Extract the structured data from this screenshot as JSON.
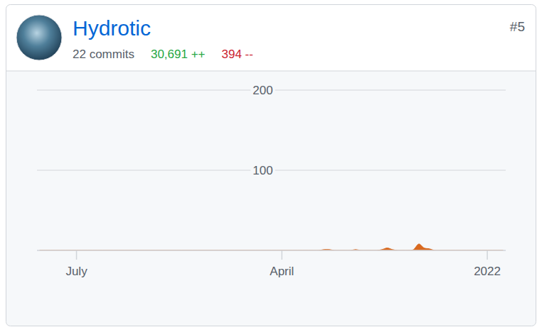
{
  "header": {
    "name": "Hydrotic",
    "commits": "22 commits",
    "additions": "30,691 ++",
    "deletions": "394 --",
    "rank": "#5"
  },
  "chart_data": {
    "type": "area",
    "color": "#d9691f",
    "grid": true,
    "categories": [
      null,
      null,
      null,
      null,
      null,
      null,
      null,
      "July",
      null,
      null,
      null,
      null,
      null,
      null,
      null,
      null,
      null,
      null,
      null,
      null,
      null,
      null,
      null,
      null,
      null,
      null,
      null,
      null,
      null,
      null,
      null,
      null,
      null,
      null,
      null,
      null,
      null,
      null,
      null,
      null,
      null,
      null,
      null,
      null,
      null,
      null,
      "April",
      null,
      null,
      null,
      null,
      null,
      null,
      null,
      null,
      null,
      null,
      null,
      null,
      null,
      null,
      null,
      null,
      null,
      null,
      null,
      null,
      null,
      null,
      null,
      null,
      null,
      null,
      null,
      null,
      null,
      null,
      null,
      null,
      null,
      null,
      null,
      null,
      null,
      null,
      "2022",
      null,
      null,
      null
    ],
    "values": [
      0,
      0,
      0,
      0,
      0,
      0,
      0,
      0,
      0,
      0,
      0,
      0,
      0,
      0,
      0,
      0,
      0,
      0,
      0,
      0,
      0,
      0,
      0,
      0,
      0,
      0,
      0,
      0,
      0,
      0,
      0,
      0,
      0,
      0,
      0,
      0,
      0,
      0,
      0,
      0,
      0,
      0,
      0,
      0,
      0,
      0,
      0,
      0,
      0,
      0,
      0,
      0,
      0,
      0,
      1,
      1,
      0,
      0,
      0,
      0,
      1,
      0,
      0,
      0,
      0,
      1,
      3,
      1,
      0,
      0,
      0,
      1,
      8,
      3,
      2,
      0,
      0,
      0,
      0,
      0,
      0,
      0,
      0,
      0,
      0,
      0,
      0,
      0,
      0
    ],
    "ylim": [
      0,
      200
    ],
    "yticks": [
      100,
      200
    ]
  }
}
